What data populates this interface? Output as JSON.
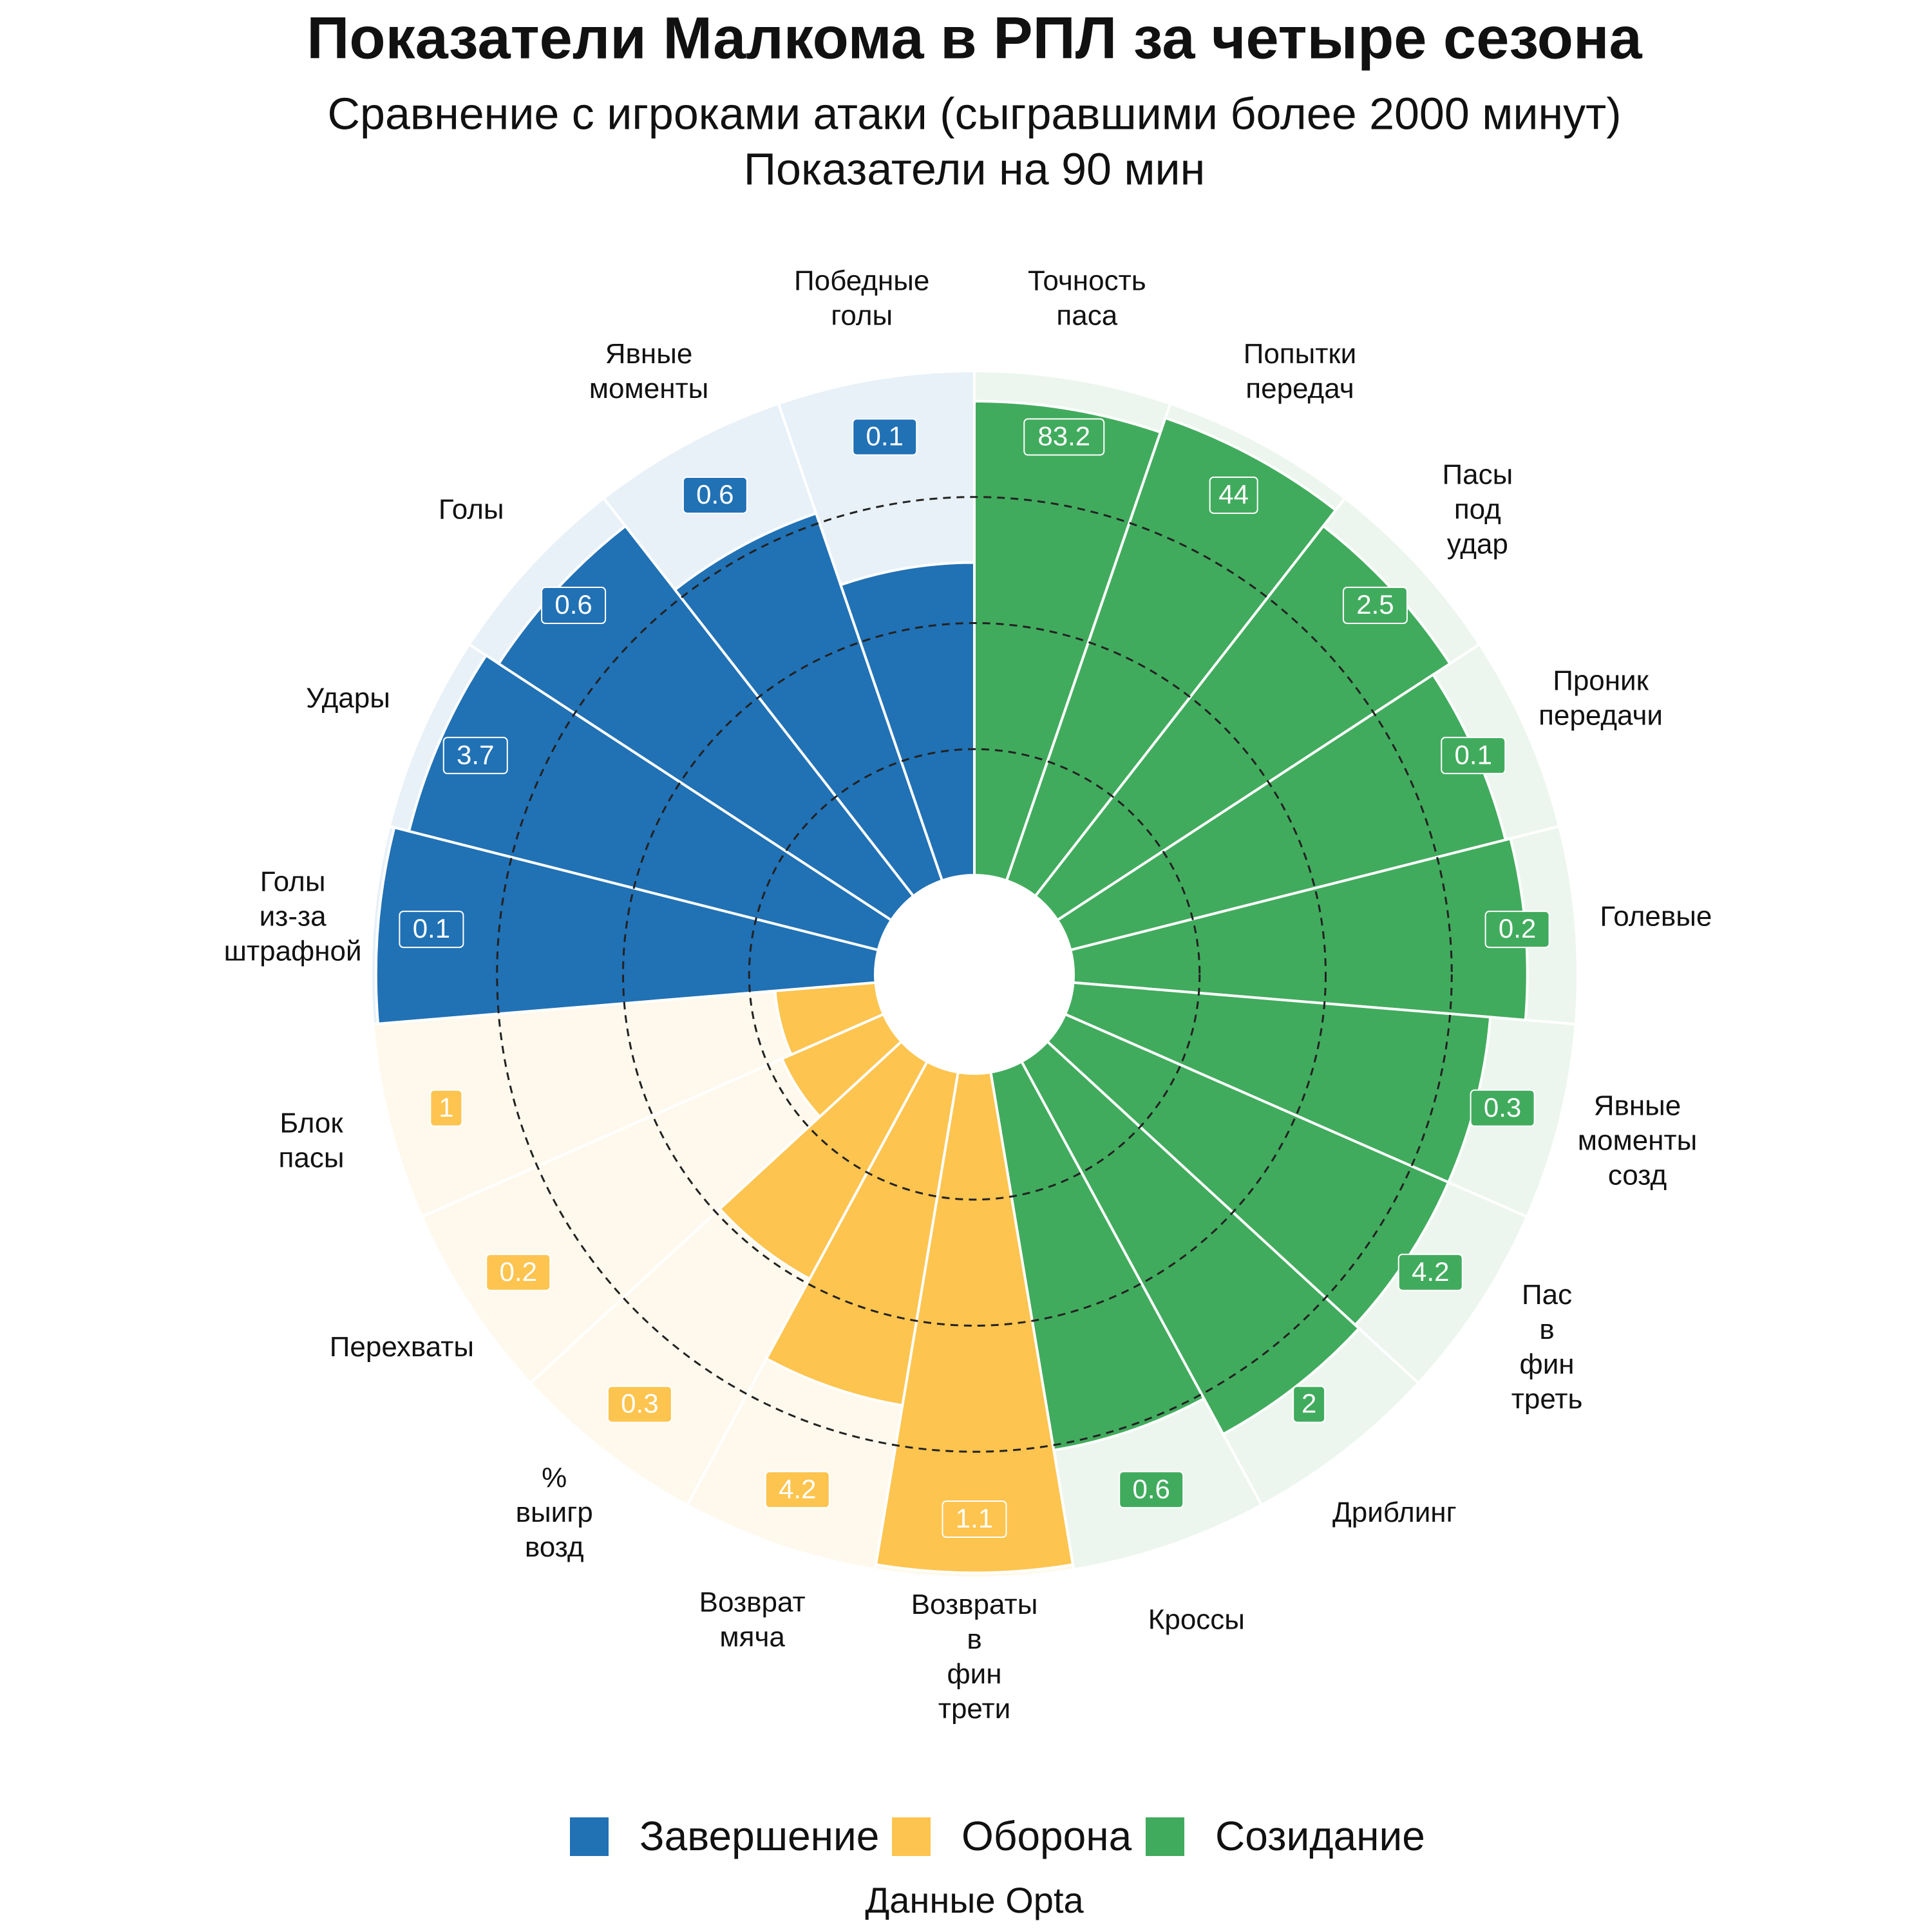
{
  "chart_data": {
    "type": "pizza",
    "title": "Показатели Малкома в РПЛ за четыре сезона",
    "subtitles": [
      "Сравнение с игроками атаки (сыгравшими более 2000 минут)",
      "Показатели на 90 мин"
    ],
    "caption": "Данные Opta",
    "rlim": [
      0,
      100
    ],
    "rticks": [
      25,
      50,
      75
    ],
    "series": [
      {
        "name": "Созидание",
        "color": "#41ab5d",
        "categories": [
          "Точность паса",
          "Попытки передач",
          "Пасы под удар",
          "Проник передачи",
          "Голевые",
          "Явные моменты созд",
          "Пас в фин треть",
          "Дриблинг",
          "Кроссы"
        ],
        "values": [
          94,
          97,
          93,
          89,
          90,
          83,
          83,
          84,
          76
        ],
        "value_labels": [
          "83.2",
          "44",
          "2.5",
          "0.1",
          "0.2",
          "0.3",
          "4.2",
          "2",
          "0.6"
        ]
      },
      {
        "name": "Оборона",
        "color": "#fdc44f",
        "categories": [
          "Возвраты в фин трети",
          "Возврат мяча",
          "% выигр возд",
          "Перехваты",
          "Блок пасы"
        ],
        "values": [
          99,
          67,
          49,
          22,
          20
        ],
        "value_labels": [
          "1.1",
          "4.2",
          "0.3",
          "0.2",
          "1"
        ]
      },
      {
        "name": "Завершение",
        "color": "#2171b5",
        "categories": [
          "Голы из-за штрафной",
          "Удары",
          "Голы",
          "Явные моменты",
          "Победные голы"
        ],
        "values": [
          99,
          96,
          93,
          77,
          62
        ],
        "value_labels": [
          "0.1",
          "3.7",
          "0.6",
          "0.6",
          "0.1"
        ]
      }
    ]
  }
}
